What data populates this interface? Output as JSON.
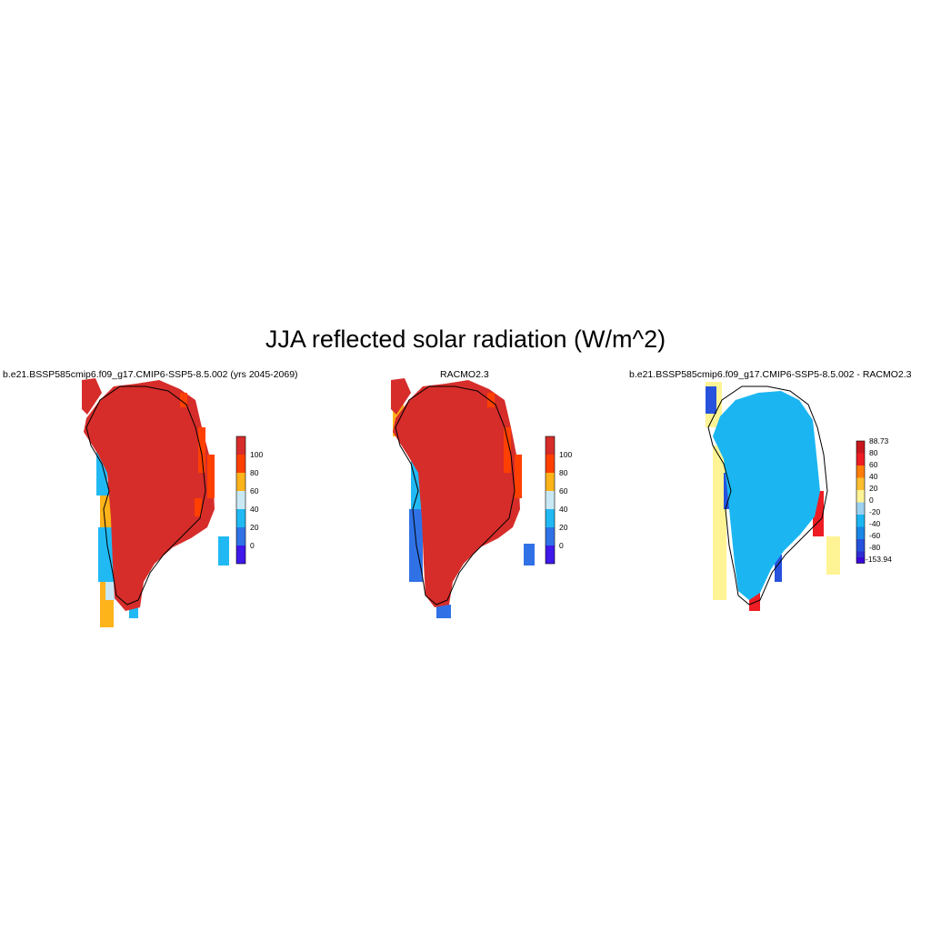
{
  "figure": {
    "title": "JJA reflected solar radiation (W/m^2)"
  },
  "panels": [
    {
      "title": "b.e21.BSSP585cmip6.f09_g17.CMIP6-SSP5-8.5.002 (yrs 2045-2069)",
      "colorbar": {
        "labels": [
          "100",
          "80",
          "60",
          "40",
          "20",
          "0"
        ],
        "colors": [
          "#d62d2a",
          "#ff4000",
          "#fdb31a",
          "#c9e8f4",
          "#21b9f3",
          "#3072e6",
          "#3f18ea"
        ]
      }
    },
    {
      "title": "RACMO2.3",
      "colorbar": {
        "labels": [
          "100",
          "80",
          "60",
          "40",
          "20",
          "0"
        ],
        "colors": [
          "#d62d2a",
          "#ff4000",
          "#fdb31a",
          "#c9e8f4",
          "#21b9f3",
          "#3072e6",
          "#3f18ea"
        ]
      }
    },
    {
      "title": "b.e21.BSSP585cmip6.f09_g17.CMIP6-SSP5-8.5.002 - RACMO2.3",
      "colorbar": {
        "labels": [
          "88.73",
          "80",
          "60",
          "40",
          "20",
          "0",
          "-20",
          "-40",
          "-60",
          "-80",
          "-153.94"
        ],
        "colors": [
          "#c8161d",
          "#ee1d24",
          "#fe7e09",
          "#fdbf30",
          "#fff495",
          "#9dd1f0",
          "#1bb6f2",
          "#1a87e6",
          "#2752dd",
          "#2e2ed1",
          "#3a07d8"
        ]
      }
    }
  ]
}
